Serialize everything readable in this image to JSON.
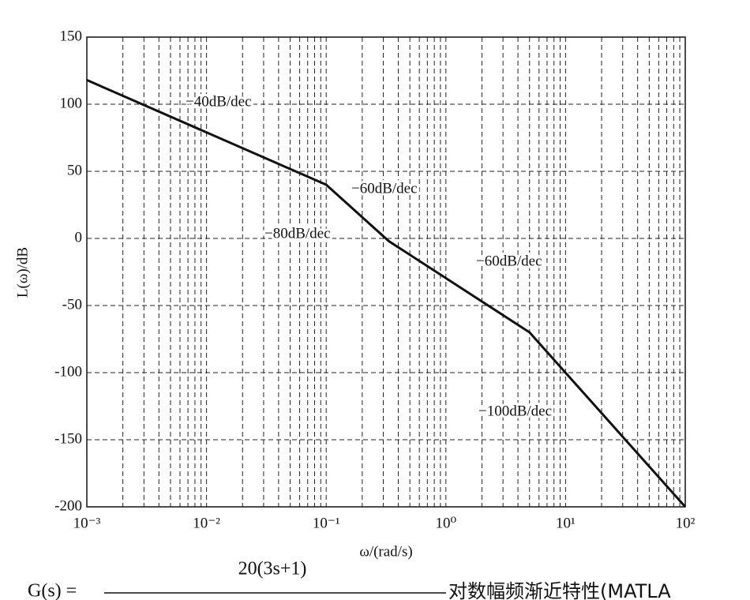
{
  "chart_data": {
    "type": "line",
    "y_label": "L(ω)/dB",
    "x_label": "ω/(rad/s)",
    "x_scale": "log",
    "grid": true,
    "minor_grid": true,
    "x": [
      0.001,
      0.1,
      0.333,
      5,
      100
    ],
    "series": [
      {
        "color": "#111111",
        "values": [
          118,
          40,
          -2,
          -70,
          -200
        ]
      }
    ],
    "xlim": [
      0.001,
      100
    ],
    "xticks": [
      {
        "value": 0.001,
        "label": "10⁻³"
      },
      {
        "value": 0.01,
        "label": "10⁻²"
      },
      {
        "value": 0.1,
        "label": "10⁻¹"
      },
      {
        "value": 1,
        "label": "10⁰"
      },
      {
        "value": 10,
        "label": "10¹"
      },
      {
        "value": 100,
        "label": "10²"
      }
    ],
    "ylim": [
      -200,
      150
    ],
    "yticks": [
      -200,
      -150,
      -100,
      -50,
      0,
      50,
      100,
      150
    ],
    "annotations": [
      "−40dB/dec",
      "−60dB/dec",
      "−80dB/dec",
      "−60dB/dec",
      "−100dB/dec"
    ]
  },
  "caption": {
    "lhs": "G(s) =",
    "numerator": "20(3s+1)",
    "text": "对数幅频渐近特性(MATLA"
  }
}
